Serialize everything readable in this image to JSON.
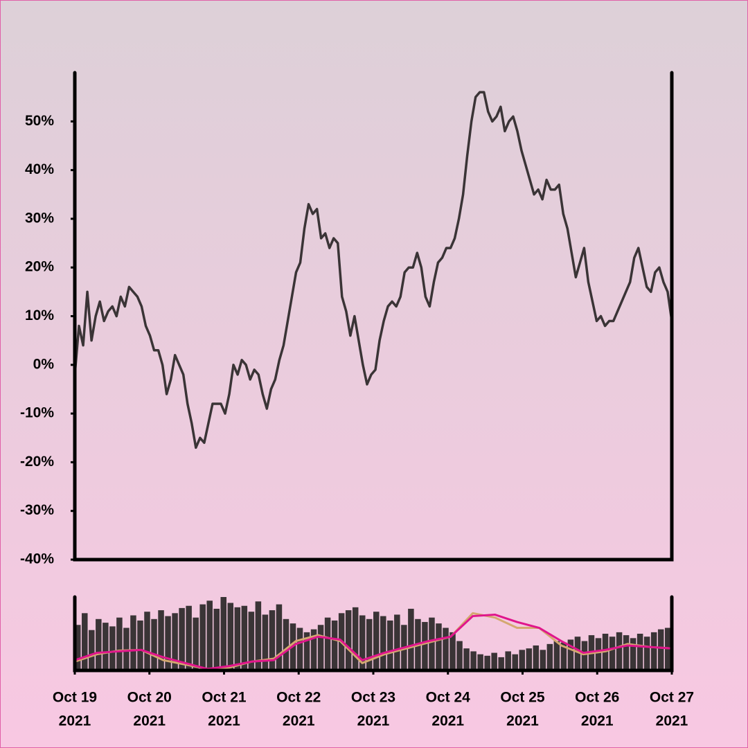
{
  "chart_data": [
    {
      "type": "line",
      "color": "#3a3436",
      "xlim": [
        "2021-10-19",
        "2021-10-27"
      ],
      "xticks": [
        {
          "value": "2021-10-19",
          "label": [
            "Oct 19",
            "2021"
          ]
        },
        {
          "value": "2021-10-20",
          "label": [
            "Oct 20",
            "2021"
          ]
        },
        {
          "value": "2021-10-21",
          "label": [
            "Oct 21",
            "2021"
          ]
        },
        {
          "value": "2021-10-22",
          "label": [
            "Oct 22",
            "2021"
          ]
        },
        {
          "value": "2021-10-23",
          "label": [
            "Oct 23",
            "2021"
          ]
        },
        {
          "value": "2021-10-24",
          "label": [
            "Oct 24",
            "2021"
          ]
        },
        {
          "value": "2021-10-25",
          "label": [
            "Oct 25",
            "2021"
          ]
        },
        {
          "value": "2021-10-26",
          "label": [
            "Oct 26",
            "2021"
          ]
        },
        {
          "value": "2021-10-27",
          "label": [
            "Oct 27",
            "2021"
          ]
        }
      ],
      "ylim": [
        -40,
        60
      ],
      "yticks": [
        {
          "value": -40,
          "label": "-40%"
        },
        {
          "value": -30,
          "label": "-30%"
        },
        {
          "value": -20,
          "label": "-20%"
        },
        {
          "value": -10,
          "label": "-10%"
        },
        {
          "value": 0,
          "label": "0%"
        },
        {
          "value": 10,
          "label": "10%"
        },
        {
          "value": 20,
          "label": "20%"
        },
        {
          "value": 30,
          "label": "30%"
        },
        {
          "value": 40,
          "label": "40%"
        },
        {
          "value": 50,
          "label": "50%"
        }
      ],
      "values": [
        -2,
        8,
        4,
        15,
        5,
        10,
        13,
        9,
        11,
        12,
        10,
        14,
        12,
        16,
        15,
        14,
        12,
        8,
        6,
        3,
        3,
        0,
        -6,
        -3,
        2,
        0,
        -2,
        -8,
        -12,
        -17,
        -15,
        -16,
        -12,
        -8,
        -8,
        -8,
        -10,
        -6,
        0,
        -2,
        1,
        0,
        -3,
        -1,
        -2,
        -6,
        -9,
        -5,
        -3,
        1,
        4,
        9,
        14,
        19,
        21,
        28,
        33,
        31,
        32,
        26,
        27,
        24,
        26,
        25,
        14,
        11,
        6,
        10,
        5,
        0,
        -4,
        -2,
        -1,
        5,
        9,
        12,
        13,
        12,
        14,
        19,
        20,
        20,
        23,
        20,
        14,
        12,
        17,
        21,
        22,
        24,
        24,
        26,
        30,
        35,
        43,
        50,
        55,
        56,
        56,
        52,
        50,
        51,
        53,
        48,
        50,
        51,
        48,
        44,
        41,
        38,
        35,
        36,
        34,
        38,
        36,
        36,
        37,
        31,
        28,
        23,
        18,
        21,
        24,
        17,
        13,
        9,
        10,
        8,
        9,
        9,
        11,
        13,
        15,
        17,
        22,
        24,
        20,
        16,
        15,
        19,
        20,
        17,
        15,
        9
      ]
    },
    {
      "type": "bar",
      "color": "#3a3436",
      "ylim": [
        0,
        100
      ],
      "values": [
        62,
        78,
        55,
        70,
        65,
        60,
        72,
        58,
        75,
        68,
        80,
        70,
        82,
        74,
        78,
        85,
        88,
        72,
        90,
        95,
        84,
        100,
        92,
        86,
        88,
        80,
        94,
        76,
        82,
        90,
        70,
        64,
        58,
        52,
        56,
        62,
        72,
        68,
        78,
        82,
        86,
        75,
        70,
        80,
        74,
        68,
        76,
        62,
        84,
        70,
        66,
        72,
        64,
        58,
        52,
        40,
        30,
        26,
        22,
        20,
        24,
        18,
        26,
        22,
        28,
        30,
        34,
        28,
        36,
        40,
        38,
        42,
        46,
        40,
        48,
        44,
        50,
        46,
        52,
        48,
        44,
        50,
        46,
        52,
        56,
        58
      ],
      "lines": [
        {
          "color": "#d4a870",
          "values": [
            12,
            22,
            27,
            28,
            14,
            8,
            2,
            4,
            12,
            16,
            40,
            48,
            40,
            10,
            22,
            30,
            38,
            46,
            78,
            72,
            58,
            58,
            34,
            22,
            26,
            36,
            32,
            30
          ]
        },
        {
          "color": "#e0158c",
          "values": [
            14,
            24,
            26,
            28,
            18,
            10,
            2,
            6,
            12,
            14,
            36,
            46,
            42,
            14,
            24,
            32,
            40,
            46,
            74,
            76,
            66,
            58,
            40,
            24,
            28,
            34,
            32,
            30
          ]
        }
      ]
    }
  ]
}
